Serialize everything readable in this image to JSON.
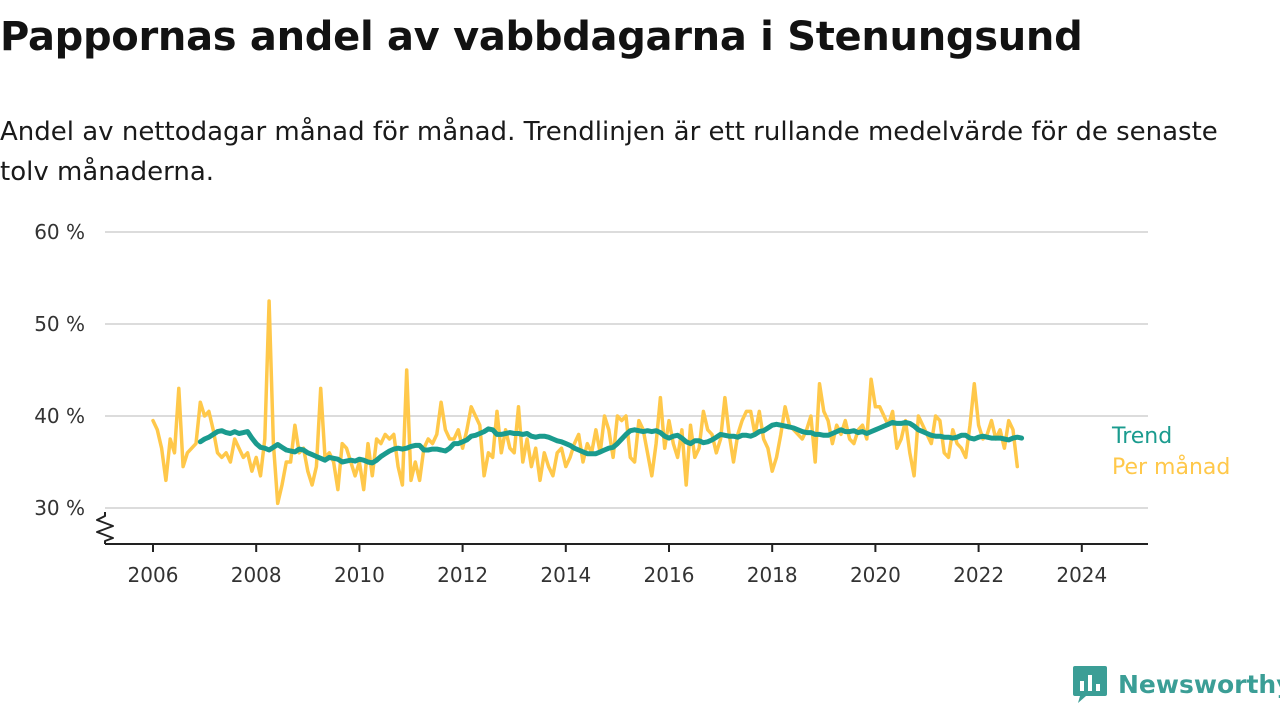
{
  "title": "Pappornas andel av vabbdagarna i Stenungsund",
  "subtitle": "Andel av nettodagar månad för månad. Trendlinjen är ett rullande medelvärde för de senaste tolv månaderna.",
  "brand": {
    "name": "Newsworthy",
    "icon": "newsworthy-chart-logo-icon",
    "color": "#3b9e96"
  },
  "chart_data": {
    "type": "line",
    "title": "Pappornas andel av vabbdagarna i Stenungsund",
    "subtitle": "Andel av nettodagar månad för månad. Trendlinjen är ett rullande medelvärde för de senaste tolv månaderna.",
    "xlabel": "",
    "ylabel": "",
    "xlim": [
      2005.75,
      2025.1
    ],
    "ylim": [
      26,
      60
    ],
    "axis_break": true,
    "grid": true,
    "x_ticks": [
      "2006",
      "2008",
      "2010",
      "2012",
      "2014",
      "2016",
      "2018",
      "2020",
      "2022",
      "2024"
    ],
    "y_ticks": [
      "30 %",
      "40 %",
      "50 %",
      "60 %"
    ],
    "y_tick_values": [
      30,
      40,
      50,
      60
    ],
    "legend": "right-end labels",
    "series": [
      {
        "name": "Per månad",
        "color": "#ffc84a",
        "x_start": "2006-01",
        "step": "month",
        "values": [
          39.5,
          38.5,
          36.5,
          33.0,
          37.5,
          36.0,
          43.0,
          34.5,
          36.0,
          36.5,
          37.0,
          41.5,
          40.0,
          40.5,
          38.5,
          36.0,
          35.5,
          36.0,
          35.0,
          37.5,
          36.5,
          35.5,
          36.0,
          34.0,
          35.5,
          33.5,
          37.5,
          52.5,
          37.0,
          30.5,
          32.5,
          35.0,
          35.0,
          39.0,
          36.0,
          36.5,
          34.0,
          32.5,
          34.5,
          43.0,
          35.5,
          36.0,
          35.0,
          32.0,
          37.0,
          36.5,
          35.0,
          33.5,
          35.0,
          32.0,
          37.0,
          33.5,
          37.5,
          37.0,
          38.0,
          37.5,
          38.0,
          34.5,
          32.5,
          45.0,
          33.0,
          35.0,
          33.0,
          36.5,
          37.5,
          37.0,
          38.0,
          41.5,
          38.5,
          37.5,
          37.5,
          38.5,
          36.5,
          38.5,
          41.0,
          40.0,
          39.0,
          33.5,
          36.0,
          35.5,
          40.5,
          36.0,
          38.5,
          36.5,
          36.0,
          41.0,
          35.0,
          37.5,
          34.5,
          36.5,
          33.0,
          36.0,
          34.5,
          33.5,
          36.0,
          36.5,
          34.5,
          35.5,
          37.0,
          38.0,
          35.0,
          37.0,
          36.0,
          38.5,
          36.0,
          40.0,
          38.5,
          35.5,
          40.0,
          39.5,
          40.0,
          35.5,
          35.0,
          39.5,
          38.5,
          36.0,
          33.5,
          37.0,
          42.0,
          36.5,
          39.5,
          37.0,
          35.5,
          38.5,
          32.5,
          39.0,
          35.5,
          36.5,
          40.5,
          38.5,
          38.0,
          36.0,
          37.5,
          42.0,
          38.0,
          35.0,
          38.0,
          39.5,
          40.5,
          40.5,
          38.0,
          40.5,
          37.5,
          36.5,
          34.0,
          35.5,
          38.0,
          41.0,
          39.0,
          38.5,
          38.0,
          37.5,
          38.5,
          40.0,
          35.0,
          43.5,
          40.5,
          39.5,
          37.0,
          39.0,
          38.0,
          39.5,
          37.5,
          37.0,
          38.5,
          39.0,
          37.5,
          44.0,
          41.0,
          41.0,
          40.0,
          39.0,
          40.5,
          36.5,
          37.5,
          39.5,
          36.0,
          33.5,
          40.0,
          39.0,
          38.0,
          37.0,
          40.0,
          39.5,
          36.0,
          35.5,
          38.5,
          37.0,
          36.5,
          35.5,
          39.0,
          43.5,
          39.0,
          37.5,
          38.0,
          39.5,
          37.5,
          38.5,
          36.5,
          39.5,
          38.5,
          34.5
        ]
      },
      {
        "name": "Trend",
        "color": "#1a9b8e",
        "x_start": "2006-12",
        "step": "month",
        "values": [
          37.2,
          37.5,
          37.7,
          38.0,
          38.3,
          38.4,
          38.2,
          38.1,
          38.3,
          38.1,
          38.2,
          38.3,
          37.6,
          37.0,
          36.6,
          36.5,
          36.3,
          36.6,
          36.9,
          36.6,
          36.3,
          36.2,
          36.1,
          36.4,
          36.3,
          36.0,
          35.8,
          35.6,
          35.4,
          35.2,
          35.5,
          35.4,
          35.3,
          35.0,
          35.1,
          35.2,
          35.1,
          35.3,
          35.2,
          35.0,
          34.9,
          35.2,
          35.6,
          35.9,
          36.2,
          36.4,
          36.5,
          36.4,
          36.5,
          36.7,
          36.8,
          36.8,
          36.3,
          36.3,
          36.4,
          36.4,
          36.3,
          36.2,
          36.5,
          37.0,
          37.0,
          37.2,
          37.4,
          37.8,
          37.9,
          38.1,
          38.3,
          38.6,
          38.5,
          38.0,
          38.0,
          38.1,
          38.2,
          38.1,
          38.1,
          38.0,
          38.1,
          37.8,
          37.7,
          37.8,
          37.8,
          37.7,
          37.5,
          37.3,
          37.2,
          37.0,
          36.8,
          36.5,
          36.3,
          36.1,
          35.9,
          35.9,
          35.9,
          36.1,
          36.3,
          36.5,
          36.6,
          37.0,
          37.5,
          38.0,
          38.4,
          38.5,
          38.4,
          38.3,
          38.4,
          38.3,
          38.4,
          38.2,
          37.8,
          37.6,
          37.8,
          37.9,
          37.6,
          37.2,
          37.0,
          37.3,
          37.3,
          37.1,
          37.2,
          37.4,
          37.7,
          38.0,
          37.9,
          37.8,
          37.8,
          37.7,
          37.9,
          37.9,
          37.8,
          38.0,
          38.3,
          38.4,
          38.7,
          39.0,
          39.1,
          39.0,
          38.9,
          38.8,
          38.7,
          38.5,
          38.3,
          38.2,
          38.2,
          38.0,
          38.0,
          37.9,
          37.9,
          38.1,
          38.3,
          38.5,
          38.3,
          38.3,
          38.4,
          38.2,
          38.3,
          38.1,
          38.3,
          38.5,
          38.7,
          38.9,
          39.1,
          39.3,
          39.2,
          39.2,
          39.3,
          39.2,
          38.9,
          38.5,
          38.3,
          38.1,
          37.9,
          37.8,
          37.8,
          37.7,
          37.7,
          37.6,
          37.7,
          37.9,
          37.9,
          37.6,
          37.5,
          37.7,
          37.8,
          37.7,
          37.6,
          37.6,
          37.6,
          37.5,
          37.4,
          37.6,
          37.7,
          37.6
        ]
      }
    ]
  }
}
